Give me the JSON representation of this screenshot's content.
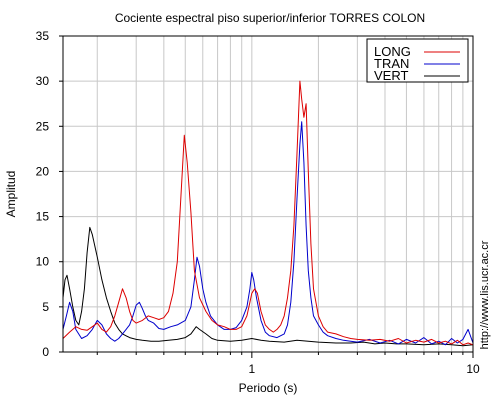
{
  "chart_data": {
    "type": "line",
    "title": "Cociente espectral piso superior/inferior  TORRES COLON",
    "xlabel": "Periodo (s)",
    "ylabel": "Amplitud",
    "x_scale": "log",
    "xlim": [
      0.14,
      10
    ],
    "ylim": [
      0,
      35
    ],
    "x_tick_labels": [
      {
        "value": 1,
        "label": "1"
      },
      {
        "value": 10,
        "label": "10"
      }
    ],
    "y_ticks": [
      0,
      5,
      10,
      15,
      20,
      25,
      30,
      35
    ],
    "grid": true,
    "legend_position": "top-right",
    "credit": "http://www.lis.ucr.ac.cr",
    "series": [
      {
        "name": "LONG",
        "color": "#dd0000",
        "points": [
          [
            0.14,
            1.5
          ],
          [
            0.15,
            2.2
          ],
          [
            0.16,
            2.8
          ],
          [
            0.17,
            2.5
          ],
          [
            0.18,
            2.4
          ],
          [
            0.19,
            2.8
          ],
          [
            0.2,
            3.2
          ],
          [
            0.21,
            2.5
          ],
          [
            0.22,
            2.2
          ],
          [
            0.23,
            2.8
          ],
          [
            0.24,
            4.0
          ],
          [
            0.25,
            5.5
          ],
          [
            0.26,
            7.0
          ],
          [
            0.27,
            6.0
          ],
          [
            0.28,
            4.5
          ],
          [
            0.29,
            3.5
          ],
          [
            0.3,
            3.2
          ],
          [
            0.32,
            3.5
          ],
          [
            0.34,
            4.0
          ],
          [
            0.36,
            3.8
          ],
          [
            0.38,
            3.6
          ],
          [
            0.4,
            3.8
          ],
          [
            0.42,
            4.5
          ],
          [
            0.44,
            6.5
          ],
          [
            0.46,
            10.0
          ],
          [
            0.48,
            18.0
          ],
          [
            0.495,
            24.0
          ],
          [
            0.51,
            21.0
          ],
          [
            0.53,
            15.5
          ],
          [
            0.55,
            9.0
          ],
          [
            0.58,
            6.0
          ],
          [
            0.62,
            4.5
          ],
          [
            0.66,
            3.5
          ],
          [
            0.7,
            3.0
          ],
          [
            0.75,
            2.8
          ],
          [
            0.8,
            2.5
          ],
          [
            0.85,
            2.5
          ],
          [
            0.9,
            2.8
          ],
          [
            0.95,
            4.0
          ],
          [
            0.98,
            5.5
          ],
          [
            1.0,
            6.5
          ],
          [
            1.03,
            7.0
          ],
          [
            1.06,
            6.5
          ],
          [
            1.1,
            4.5
          ],
          [
            1.15,
            3.0
          ],
          [
            1.2,
            2.5
          ],
          [
            1.25,
            2.2
          ],
          [
            1.3,
            2.5
          ],
          [
            1.35,
            3.0
          ],
          [
            1.4,
            4.0
          ],
          [
            1.45,
            6.0
          ],
          [
            1.5,
            9.0
          ],
          [
            1.55,
            14.0
          ],
          [
            1.6,
            22.0
          ],
          [
            1.65,
            30.0
          ],
          [
            1.68,
            28.0
          ],
          [
            1.72,
            26.0
          ],
          [
            1.76,
            27.5
          ],
          [
            1.8,
            20.0
          ],
          [
            1.85,
            12.0
          ],
          [
            1.9,
            7.0
          ],
          [
            2.0,
            4.0
          ],
          [
            2.1,
            2.8
          ],
          [
            2.2,
            2.2
          ],
          [
            2.4,
            2.0
          ],
          [
            2.6,
            1.7
          ],
          [
            2.8,
            1.5
          ],
          [
            3.0,
            1.4
          ],
          [
            3.4,
            1.3
          ],
          [
            3.8,
            1.4
          ],
          [
            4.2,
            1.2
          ],
          [
            4.6,
            1.5
          ],
          [
            5.0,
            1.0
          ],
          [
            5.5,
            1.3
          ],
          [
            6.0,
            1.1
          ],
          [
            6.5,
            1.4
          ],
          [
            7.0,
            1.0
          ],
          [
            7.5,
            1.2
          ],
          [
            8.0,
            0.9
          ],
          [
            8.5,
            1.3
          ],
          [
            9.0,
            0.8
          ],
          [
            9.5,
            1.0
          ],
          [
            10.0,
            0.8
          ]
        ]
      },
      {
        "name": "TRAN",
        "color": "#0000cc",
        "points": [
          [
            0.14,
            2.5
          ],
          [
            0.145,
            4.0
          ],
          [
            0.15,
            5.5
          ],
          [
            0.155,
            4.5
          ],
          [
            0.16,
            2.5
          ],
          [
            0.17,
            1.5
          ],
          [
            0.18,
            1.8
          ],
          [
            0.19,
            2.5
          ],
          [
            0.2,
            3.5
          ],
          [
            0.21,
            3.0
          ],
          [
            0.22,
            2.0
          ],
          [
            0.23,
            1.5
          ],
          [
            0.24,
            1.2
          ],
          [
            0.25,
            1.5
          ],
          [
            0.26,
            2.0
          ],
          [
            0.27,
            2.5
          ],
          [
            0.28,
            3.0
          ],
          [
            0.29,
            4.0
          ],
          [
            0.3,
            5.2
          ],
          [
            0.31,
            5.5
          ],
          [
            0.32,
            4.8
          ],
          [
            0.33,
            4.0
          ],
          [
            0.34,
            3.5
          ],
          [
            0.36,
            3.2
          ],
          [
            0.38,
            2.6
          ],
          [
            0.4,
            2.5
          ],
          [
            0.43,
            2.8
          ],
          [
            0.46,
            3.0
          ],
          [
            0.5,
            3.5
          ],
          [
            0.53,
            5.0
          ],
          [
            0.55,
            8.0
          ],
          [
            0.565,
            10.5
          ],
          [
            0.58,
            9.5
          ],
          [
            0.6,
            7.0
          ],
          [
            0.62,
            5.5
          ],
          [
            0.65,
            4.0
          ],
          [
            0.7,
            3.0
          ],
          [
            0.75,
            2.5
          ],
          [
            0.8,
            2.5
          ],
          [
            0.85,
            2.7
          ],
          [
            0.9,
            3.5
          ],
          [
            0.95,
            5.0
          ],
          [
            0.98,
            7.0
          ],
          [
            1.0,
            8.8
          ],
          [
            1.02,
            8.0
          ],
          [
            1.05,
            6.0
          ],
          [
            1.1,
            3.5
          ],
          [
            1.15,
            2.2
          ],
          [
            1.2,
            1.8
          ],
          [
            1.3,
            1.6
          ],
          [
            1.4,
            2.0
          ],
          [
            1.45,
            3.0
          ],
          [
            1.5,
            5.5
          ],
          [
            1.55,
            10.0
          ],
          [
            1.6,
            17.0
          ],
          [
            1.65,
            23.0
          ],
          [
            1.68,
            25.5
          ],
          [
            1.72,
            21.0
          ],
          [
            1.76,
            14.0
          ],
          [
            1.8,
            9.0
          ],
          [
            1.85,
            6.0
          ],
          [
            1.9,
            4.0
          ],
          [
            2.0,
            3.0
          ],
          [
            2.1,
            2.2
          ],
          [
            2.2,
            1.8
          ],
          [
            2.4,
            1.5
          ],
          [
            2.6,
            1.3
          ],
          [
            2.8,
            1.2
          ],
          [
            3.0,
            1.1
          ],
          [
            3.4,
            1.4
          ],
          [
            3.8,
            1.0
          ],
          [
            4.2,
            1.3
          ],
          [
            4.6,
            0.9
          ],
          [
            5.0,
            1.4
          ],
          [
            5.5,
            1.0
          ],
          [
            6.0,
            1.6
          ],
          [
            6.5,
            0.9
          ],
          [
            7.0,
            1.2
          ],
          [
            7.5,
            0.8
          ],
          [
            8.0,
            1.5
          ],
          [
            8.5,
            1.0
          ],
          [
            9.0,
            1.4
          ],
          [
            9.5,
            2.5
          ],
          [
            10.0,
            1.0
          ]
        ]
      },
      {
        "name": "VERT",
        "color": "#000000",
        "points": [
          [
            0.14,
            6.0
          ],
          [
            0.143,
            8.0
          ],
          [
            0.146,
            8.5
          ],
          [
            0.15,
            7.0
          ],
          [
            0.155,
            5.0
          ],
          [
            0.16,
            3.5
          ],
          [
            0.165,
            3.0
          ],
          [
            0.17,
            4.5
          ],
          [
            0.175,
            7.0
          ],
          [
            0.18,
            11.0
          ],
          [
            0.185,
            13.8
          ],
          [
            0.19,
            13.0
          ],
          [
            0.2,
            10.5
          ],
          [
            0.21,
            8.0
          ],
          [
            0.22,
            6.0
          ],
          [
            0.23,
            4.5
          ],
          [
            0.24,
            3.2
          ],
          [
            0.25,
            2.5
          ],
          [
            0.26,
            2.0
          ],
          [
            0.28,
            1.6
          ],
          [
            0.3,
            1.4
          ],
          [
            0.32,
            1.3
          ],
          [
            0.35,
            1.2
          ],
          [
            0.38,
            1.2
          ],
          [
            0.42,
            1.3
          ],
          [
            0.46,
            1.4
          ],
          [
            0.5,
            1.6
          ],
          [
            0.53,
            2.0
          ],
          [
            0.56,
            2.8
          ],
          [
            0.58,
            2.5
          ],
          [
            0.62,
            2.0
          ],
          [
            0.66,
            1.5
          ],
          [
            0.7,
            1.3
          ],
          [
            0.8,
            1.2
          ],
          [
            0.9,
            1.3
          ],
          [
            1.0,
            1.5
          ],
          [
            1.1,
            1.3
          ],
          [
            1.2,
            1.2
          ],
          [
            1.4,
            1.1
          ],
          [
            1.6,
            1.3
          ],
          [
            1.8,
            1.2
          ],
          [
            2.0,
            1.1
          ],
          [
            2.4,
            1.0
          ],
          [
            2.8,
            1.0
          ],
          [
            3.2,
            1.1
          ],
          [
            3.6,
            0.9
          ],
          [
            4.0,
            1.0
          ],
          [
            4.5,
            0.9
          ],
          [
            5.0,
            0.9
          ],
          [
            6.0,
            0.8
          ],
          [
            7.0,
            0.9
          ],
          [
            8.0,
            0.8
          ],
          [
            9.0,
            0.7
          ],
          [
            10.0,
            0.8
          ]
        ]
      }
    ]
  }
}
